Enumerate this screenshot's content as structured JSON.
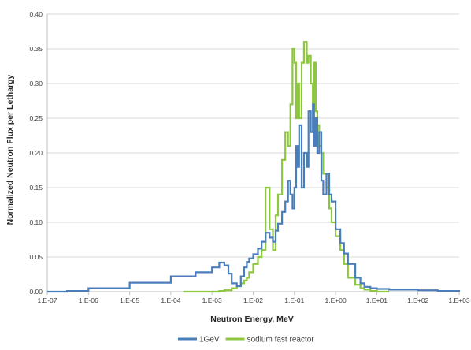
{
  "chart_data": {
    "type": "line",
    "step": true,
    "xlabel": "Neutron Energy, MeV",
    "ylabel": "Normalized Neutron Flux per Lethargy",
    "x_scale": "log",
    "xlim": [
      1e-07,
      1000
    ],
    "ylim": [
      0,
      0.4
    ],
    "y_ticks": [
      "0.00",
      "0.05",
      "0.10",
      "0.15",
      "0.20",
      "0.25",
      "0.30",
      "0.35",
      "0.40"
    ],
    "x_ticks": [
      "1.E-07",
      "1.E-06",
      "1.E-05",
      "1.E-04",
      "1.E-03",
      "1.E-02",
      "1.E-01",
      "1.E+00",
      "1.E+01",
      "1.E+02",
      "1.E+03"
    ],
    "grid": "horizontal",
    "legend_position": "bottom",
    "colors": {
      "1GeV": "#4a7ebb",
      "sodium fast reactor": "#8dc63f"
    },
    "series": [
      {
        "name": "1GeV",
        "x": [
          1e-07,
          3e-07,
          1e-06,
          1e-05,
          0.0001,
          0.0004,
          0.001,
          0.0015,
          0.002,
          0.0025,
          0.003,
          0.004,
          0.005,
          0.006,
          0.007,
          0.008,
          0.01,
          0.013,
          0.016,
          0.02,
          0.025,
          0.03,
          0.035,
          0.04,
          0.05,
          0.06,
          0.07,
          0.08,
          0.09,
          0.1,
          0.11,
          0.12,
          0.13,
          0.15,
          0.17,
          0.2,
          0.22,
          0.25,
          0.28,
          0.3,
          0.33,
          0.36,
          0.4,
          0.45,
          0.5,
          0.6,
          0.7,
          0.8,
          1.0,
          1.3,
          1.6,
          2,
          3,
          4,
          5,
          7,
          10,
          20,
          100,
          300,
          1000
        ],
        "y": [
          0.0,
          0.001,
          0.005,
          0.013,
          0.022,
          0.028,
          0.035,
          0.042,
          0.038,
          0.026,
          0.012,
          0.008,
          0.022,
          0.035,
          0.043,
          0.048,
          0.054,
          0.062,
          0.072,
          0.085,
          0.078,
          0.072,
          0.088,
          0.098,
          0.115,
          0.13,
          0.16,
          0.14,
          0.12,
          0.15,
          0.21,
          0.18,
          0.24,
          0.15,
          0.2,
          0.18,
          0.26,
          0.23,
          0.27,
          0.21,
          0.25,
          0.2,
          0.23,
          0.16,
          0.14,
          0.17,
          0.14,
          0.13,
          0.09,
          0.07,
          0.055,
          0.04,
          0.02,
          0.012,
          0.007,
          0.005,
          0.004,
          0.003,
          0.002,
          0.001,
          0.0
        ]
      },
      {
        "name": "sodium fast reactor",
        "x": [
          0.0002,
          0.0005,
          0.001,
          0.0015,
          0.002,
          0.003,
          0.004,
          0.005,
          0.006,
          0.007,
          0.008,
          0.01,
          0.013,
          0.016,
          0.02,
          0.025,
          0.03,
          0.035,
          0.04,
          0.05,
          0.06,
          0.07,
          0.08,
          0.09,
          0.1,
          0.11,
          0.12,
          0.13,
          0.15,
          0.17,
          0.2,
          0.22,
          0.25,
          0.28,
          0.3,
          0.33,
          0.36,
          0.4,
          0.45,
          0.5,
          0.6,
          0.7,
          0.8,
          1.0,
          1.3,
          1.6,
          2,
          3,
          4,
          5,
          7,
          10,
          20
        ],
        "y": [
          0.0,
          0.0,
          0.0,
          0.001,
          0.002,
          0.005,
          0.008,
          0.012,
          0.016,
          0.02,
          0.028,
          0.04,
          0.05,
          0.06,
          0.15,
          0.09,
          0.06,
          0.11,
          0.14,
          0.19,
          0.23,
          0.21,
          0.27,
          0.35,
          0.33,
          0.25,
          0.3,
          0.25,
          0.33,
          0.36,
          0.33,
          0.34,
          0.3,
          0.27,
          0.33,
          0.26,
          0.24,
          0.21,
          0.2,
          0.17,
          0.15,
          0.12,
          0.1,
          0.08,
          0.06,
          0.04,
          0.02,
          0.01,
          0.005,
          0.003,
          0.001,
          0.0,
          0.0
        ]
      }
    ]
  }
}
